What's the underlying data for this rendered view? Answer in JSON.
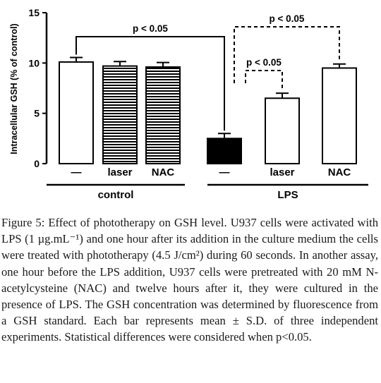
{
  "chart_data": {
    "type": "bar",
    "ylabel": "Intracellular GSH (% of control)",
    "ylim": [
      0,
      15
    ],
    "yticks": [
      0,
      5,
      10,
      15
    ],
    "categories": [
      "—",
      "laser",
      "NAC",
      "—",
      "laser",
      "NAC"
    ],
    "values": [
      10.1,
      9.7,
      9.6,
      2.5,
      6.5,
      9.5
    ],
    "errors": [
      0.45,
      0.45,
      0.45,
      0.5,
      0.5,
      0.4
    ],
    "fills": [
      "white",
      "hstripes",
      "hstripes",
      "black",
      "white",
      "white"
    ],
    "groups": [
      {
        "label": "control",
        "from": 0,
        "to": 2
      },
      {
        "label": "LPS",
        "from": 3,
        "to": 5
      }
    ],
    "significance": [
      {
        "from": 0,
        "to": 3,
        "label": "p < 0.05",
        "style": "solid"
      },
      {
        "from": 3,
        "to": 5,
        "label": "p < 0.05",
        "style": "dashed"
      },
      {
        "from": 3,
        "to": 4,
        "label": "p < 0.05",
        "style": "dashed"
      }
    ],
    "colors": {
      "bar_stroke": "#000000",
      "bar_black": "#000000",
      "background": "#ffffff"
    }
  },
  "caption": {
    "label": "Figure 5:",
    "text": "Effect of phototherapy on GSH level. U937 cells were activated with LPS (1 µg.mL⁻¹) and one hour after its addition in the culture medium the cells were treated with phototherapy (4.5 J/cm²) during 60 seconds. In another assay, one hour before the LPS addition, U937 cells were pretreated with 20 mM N-acetylcysteine (NAC) and twelve hours after it, they were cultured in the presence of LPS. The GSH concentration was determined by fluorescence from a GSH standard. Each bar represents mean ± S.D. of three independent experiments. Statistical differences were considered when p<0.05."
  }
}
